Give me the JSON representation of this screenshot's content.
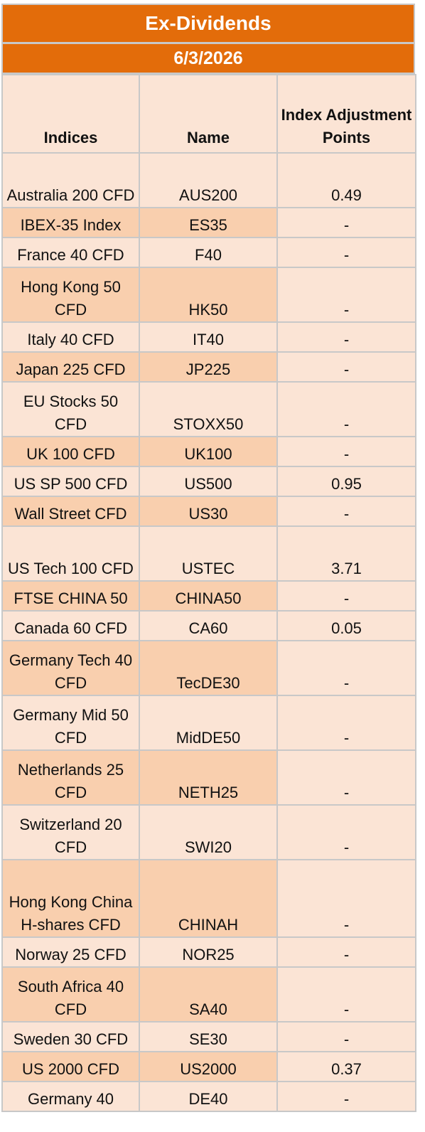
{
  "title": "Ex-Dividends",
  "date": "6/3/2026",
  "headers": {
    "indices": "Indices",
    "name": "Name",
    "adj": "Index Adjustment Points"
  },
  "colors": {
    "header_band": "#e36c0a",
    "row_light": "#fbe4d5",
    "row_dark": "#f9cfae",
    "grid": "#c8c8c8"
  },
  "rows": [
    {
      "index": "Australia 200 CFD",
      "name": "AUS200",
      "adj": "0.49"
    },
    {
      "index": "IBEX-35 Index",
      "name": "ES35",
      "adj": "-"
    },
    {
      "index": "France 40 CFD",
      "name": "F40",
      "adj": "-"
    },
    {
      "index": "Hong Kong 50 CFD",
      "name": "HK50",
      "adj": "-"
    },
    {
      "index": "Italy 40 CFD",
      "name": "IT40",
      "adj": "-"
    },
    {
      "index": "Japan 225 CFD",
      "name": "JP225",
      "adj": "-"
    },
    {
      "index": "EU Stocks 50 CFD",
      "name": "STOXX50",
      "adj": "-"
    },
    {
      "index": "UK 100 CFD",
      "name": "UK100",
      "adj": "-"
    },
    {
      "index": "US SP 500 CFD",
      "name": "US500",
      "adj": "0.95"
    },
    {
      "index": "Wall Street CFD",
      "name": "US30",
      "adj": "-"
    },
    {
      "index": "US Tech 100 CFD",
      "name": "USTEC",
      "adj": "3.71"
    },
    {
      "index": "FTSE CHINA 50",
      "name": "CHINA50",
      "adj": "-"
    },
    {
      "index": "Canada 60 CFD",
      "name": "CA60",
      "adj": "0.05"
    },
    {
      "index": "Germany Tech 40 CFD",
      "name": "TecDE30",
      "adj": "-"
    },
    {
      "index": "Germany Mid 50 CFD",
      "name": "MidDE50",
      "adj": "-"
    },
    {
      "index": "Netherlands 25 CFD",
      "name": "NETH25",
      "adj": "-"
    },
    {
      "index": "Switzerland 20 CFD",
      "name": "SWI20",
      "adj": "-"
    },
    {
      "index": "Hong Kong China H-shares CFD",
      "name": "CHINAH",
      "adj": "-"
    },
    {
      "index": "Norway 25 CFD",
      "name": "NOR25",
      "adj": "-"
    },
    {
      "index": "South Africa 40 CFD",
      "name": "SA40",
      "adj": "-"
    },
    {
      "index": "Sweden 30 CFD",
      "name": "SE30",
      "adj": "-"
    },
    {
      "index": "US 2000 CFD",
      "name": "US2000",
      "adj": "0.37"
    },
    {
      "index": "Germany 40",
      "name": "DE40",
      "adj": "-"
    }
  ]
}
